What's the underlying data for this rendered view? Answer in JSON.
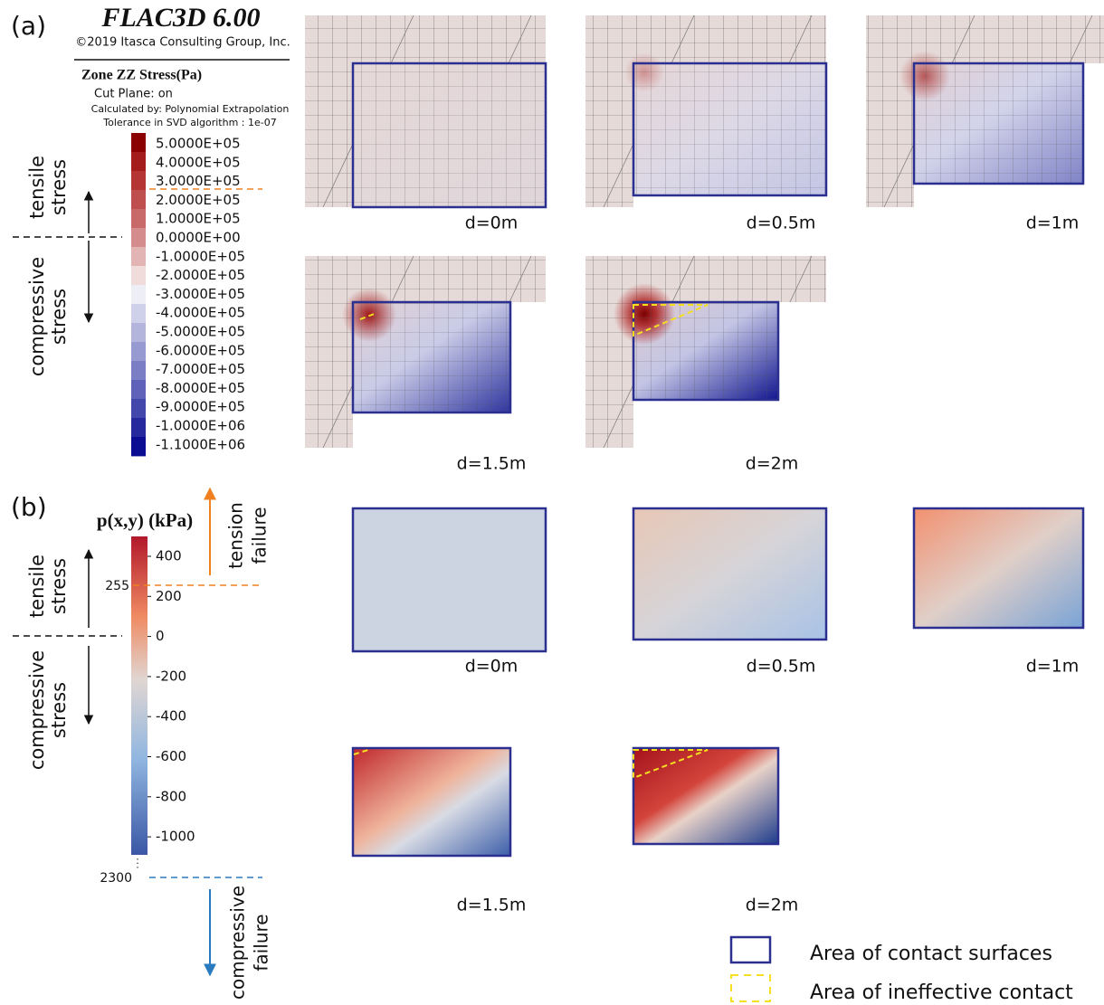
{
  "panel_a": {
    "label": "(a)",
    "software": "FLAC3D 6.00",
    "copyright": "©2019 Itasca Consulting Group, Inc.",
    "quantity": "Zone ZZ Stress(Pa)",
    "info": [
      "Cut Plane: on",
      "Calculated by: Polynomial Extrapolation",
      "Tolerance in SVD algorithm : 1e-07"
    ],
    "colorbar": {
      "labels": [
        "5.0000E+05",
        "4.0000E+05",
        "3.0000E+05",
        "2.0000E+05",
        "1.0000E+05",
        "0.0000E+00",
        "-1.0000E+05",
        "-2.0000E+05",
        "-3.0000E+05",
        "-4.0000E+05",
        "-5.0000E+05",
        "-6.0000E+05",
        "-7.0000E+05",
        "-8.0000E+05",
        "-9.0000E+05",
        "-1.0000E+06",
        "-1.1000E+06"
      ],
      "colors": [
        "#8b0000",
        "#a51c1c",
        "#b53535",
        "#bf4e4e",
        "#c86a6a",
        "#d48c8c",
        "#e3b4b4",
        "#f1dcdc",
        "#eeeef7",
        "#cfd0e9",
        "#b3b5dd",
        "#9799d1",
        "#7b7ec4",
        "#5f62b8",
        "#4346ab",
        "#26299e",
        "#0a0d91"
      ]
    },
    "tensile": [
      "tensile",
      "stress"
    ],
    "compressive": [
      "compressive",
      "stress"
    ],
    "captions": [
      "d=0m",
      "d=0.5m",
      "d=1m",
      "d=1.5m",
      "d=2m"
    ]
  },
  "panel_b": {
    "label": "(b)",
    "colorbar_title": "p(x,y) (kPa)",
    "ticks": [
      "400",
      "200",
      "0",
      "-200",
      "-400",
      "-600",
      "-800",
      "-1000"
    ],
    "tension_threshold": "255",
    "compression_threshold": "2300",
    "tension_failure": [
      "tension",
      "failure"
    ],
    "compressive_failure": [
      "compressive",
      "failure"
    ],
    "tensile": [
      "tensile",
      "stress"
    ],
    "compressive": [
      "compressive",
      "stress"
    ],
    "captions": [
      "d=0m",
      "d=0.5m",
      "d=1m",
      "d=1.5m",
      "d=2m"
    ]
  },
  "legend": [
    "Area of contact surfaces",
    "Area of ineffective contact"
  ]
}
